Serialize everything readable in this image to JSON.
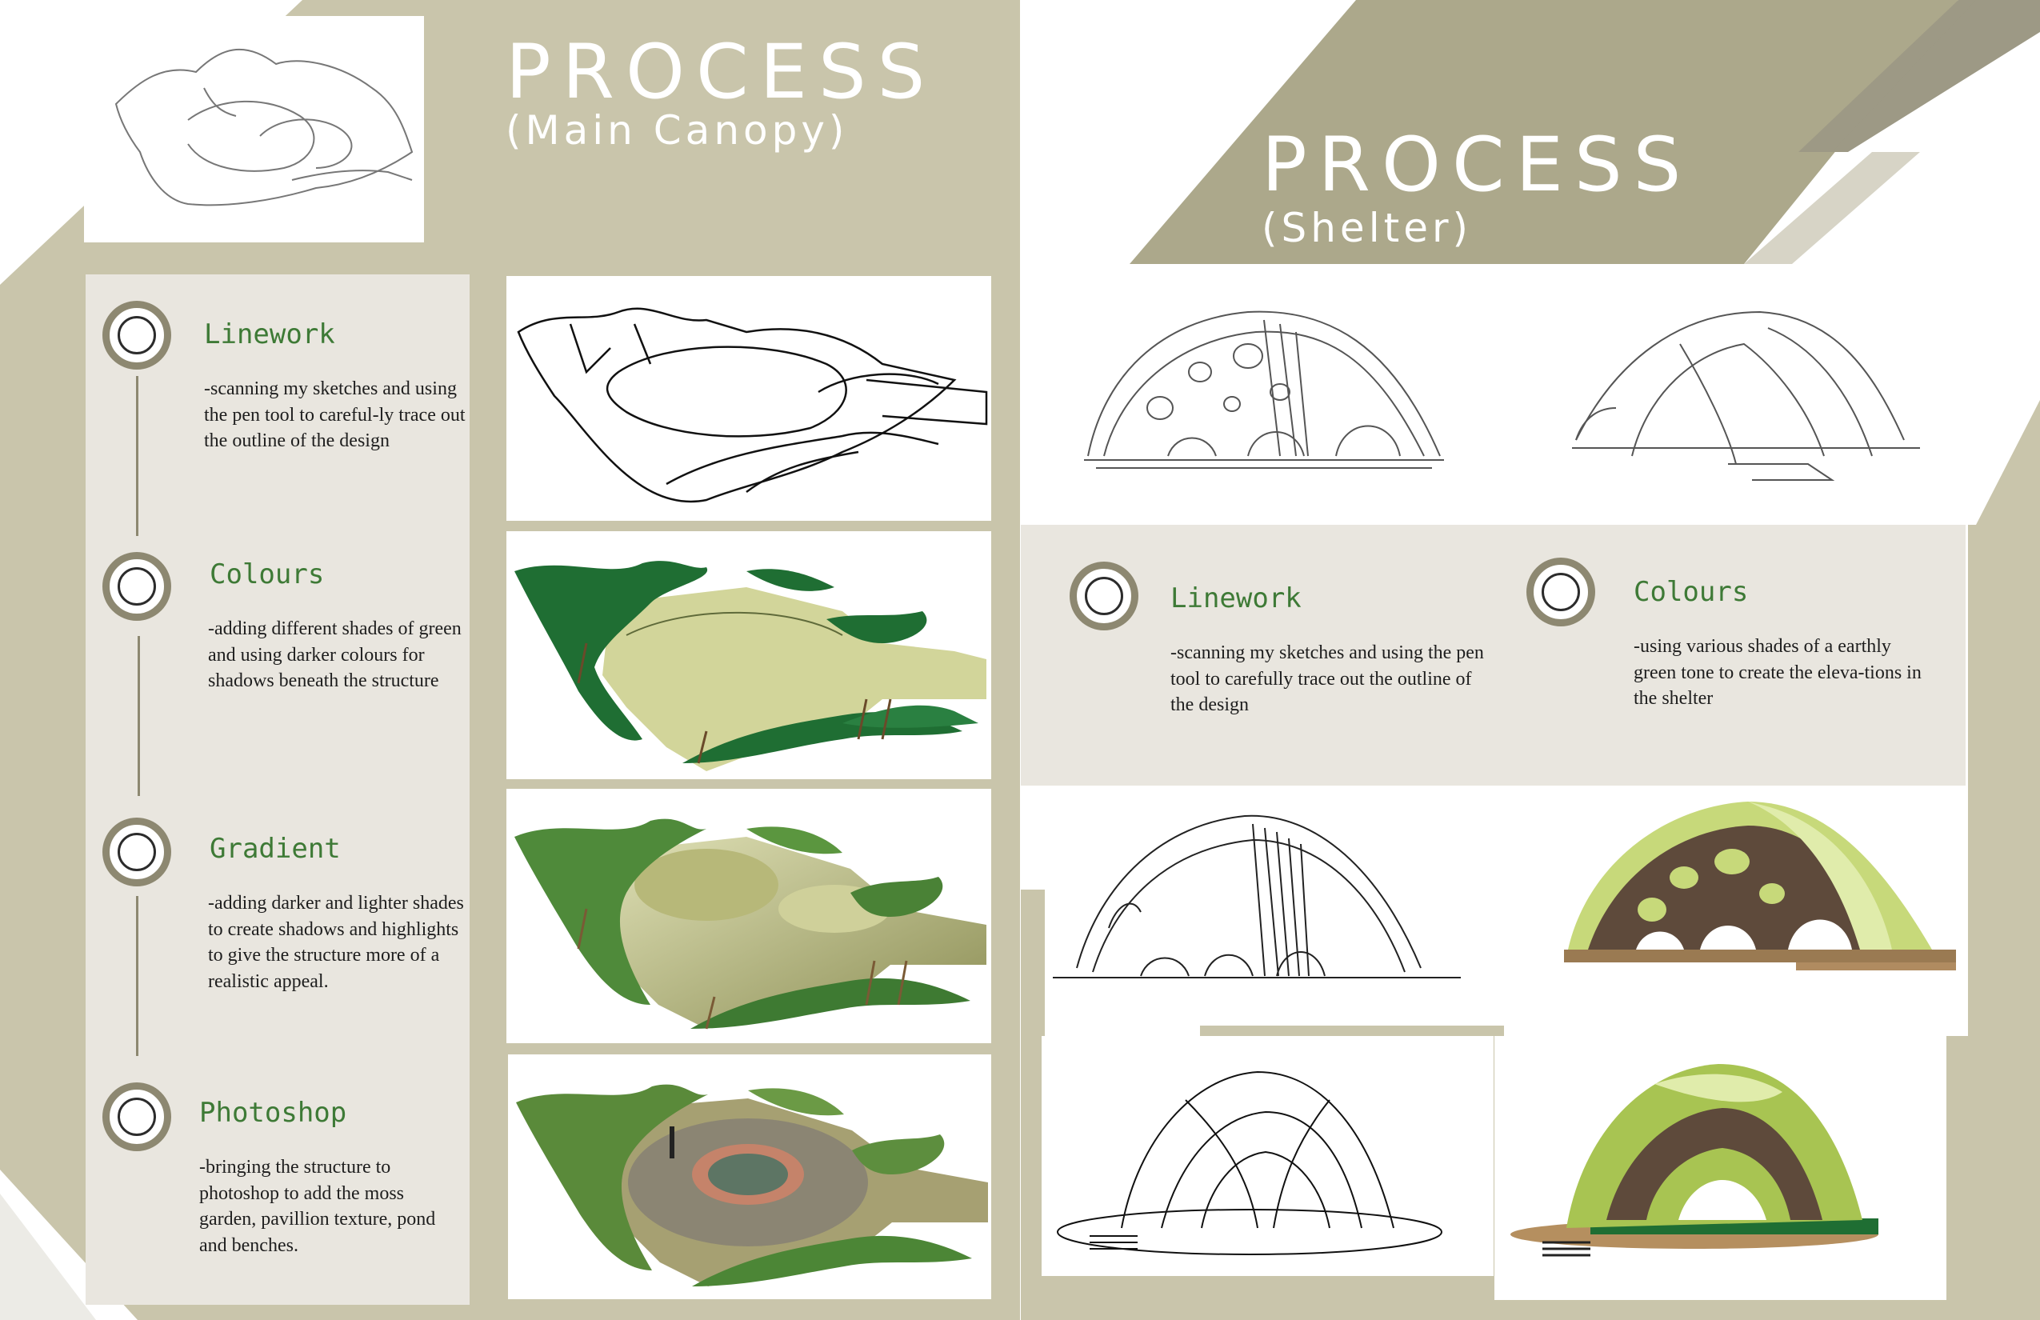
{
  "left": {
    "title": "PROCESS",
    "subtitle": "(Main Canopy)",
    "steps": [
      {
        "heading": "Linework",
        "body": "-scanning my sketches and using the pen tool to careful-ly trace out the outline of the design"
      },
      {
        "heading": "Colours",
        "body": "-adding different shades of green and using darker colours for shadows beneath the structure"
      },
      {
        "heading": "Gradient",
        "body": "-adding darker and lighter shades to create shadows and highlights to give the structure more of a realistic appeal."
      },
      {
        "heading": "Photoshop",
        "body": "-bringing the structure to photoshop to add the moss garden, pavillion texture, pond and benches."
      }
    ]
  },
  "right": {
    "title": "PROCESS",
    "subtitle": "(Shelter)",
    "steps": [
      {
        "heading": "Linework",
        "body": "-scanning my sketches and using the pen tool to carefully trace out the outline of the design"
      },
      {
        "heading": "Colours",
        "body": "-using various shades of a earthly green tone to create the eleva-tions in the shelter"
      }
    ]
  },
  "colors": {
    "beige": "#c9c5ab",
    "khaki": "#aca88b",
    "panel": "#e9e6df",
    "accent_green": "#3e7a36",
    "ring": "#8d8871"
  }
}
